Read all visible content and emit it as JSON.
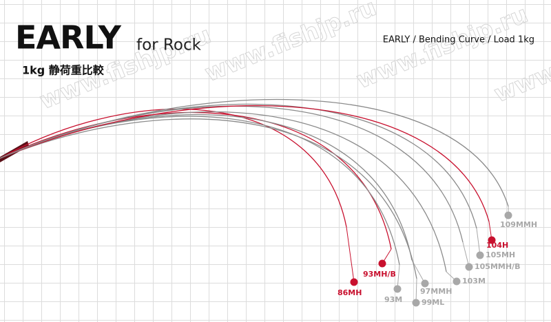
{
  "header": {
    "title": "EARLY",
    "subtitle": "for Rock",
    "caption": "1kg 静荷重比較",
    "chart_label": "EARLY / Bending Curve / Load 1kg"
  },
  "watermark": "www.fishjp.ru",
  "rods": [
    {
      "label": "86MH",
      "color": "#c8102e"
    },
    {
      "label": "93MH/B",
      "color": "#c8102e"
    },
    {
      "label": "93M",
      "color": "#a8a8a8"
    },
    {
      "label": "97MMH",
      "color": "#a8a8a8"
    },
    {
      "label": "99ML",
      "color": "#a8a8a8"
    },
    {
      "label": "103M",
      "color": "#a8a8a8"
    },
    {
      "label": "105MMH/B",
      "color": "#a8a8a8"
    },
    {
      "label": "105MH",
      "color": "#a8a8a8"
    },
    {
      "label": "104H",
      "color": "#c8102e"
    },
    {
      "label": "109MMH",
      "color": "#a8a8a8"
    }
  ]
}
